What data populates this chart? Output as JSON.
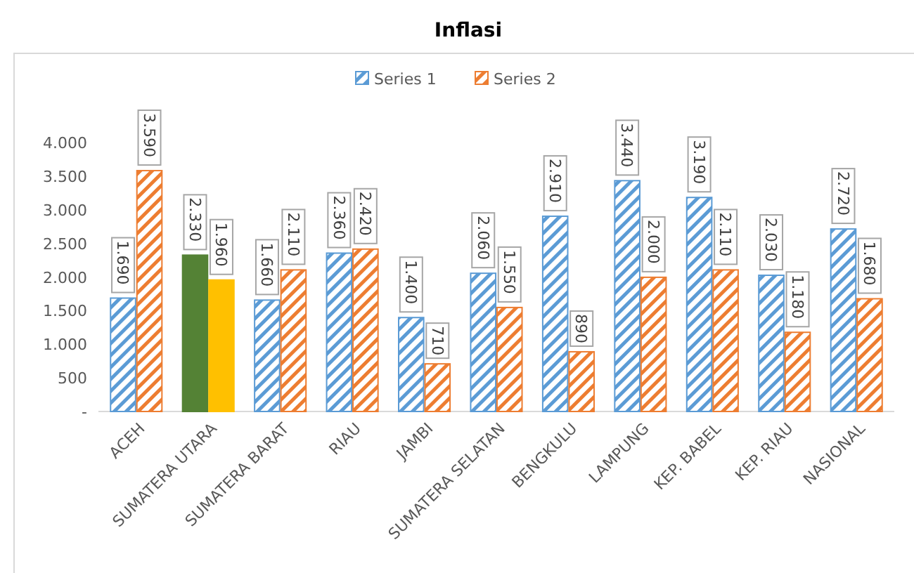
{
  "chart_data": {
    "type": "bar",
    "title": "Inflasi",
    "categories": [
      "ACEH",
      "SUMATERA UTARA",
      "SUMATERA BARAT",
      "RIAU",
      "JAMBI",
      "SUMATERA SELATAN",
      "BENGKULU",
      "LAMPUNG",
      "KEP. BABEL",
      "KEP. RIAU",
      "NASIONAL"
    ],
    "series": [
      {
        "name": "Series 1",
        "color": "#5b9bd5",
        "colors": [
          "#5b9bd5",
          "#548235",
          "#5b9bd5",
          "#5b9bd5",
          "#5b9bd5",
          "#5b9bd5",
          "#5b9bd5",
          "#5b9bd5",
          "#5b9bd5",
          "#5b9bd5",
          "#5b9bd5"
        ],
        "values": [
          1690,
          2330,
          1660,
          2360,
          1400,
          2060,
          2910,
          3440,
          3190,
          2030,
          2720
        ],
        "value_labels": [
          "1.690",
          "2.330",
          "1.660",
          "2.360",
          "1.400",
          "2.060",
          "2.910",
          "3.440",
          "3.190",
          "2.030",
          "2.720"
        ]
      },
      {
        "name": "Series 2",
        "color": "#ed7d31",
        "colors": [
          "#ed7d31",
          "#ffc000",
          "#ed7d31",
          "#ed7d31",
          "#ed7d31",
          "#ed7d31",
          "#ed7d31",
          "#ed7d31",
          "#ed7d31",
          "#ed7d31",
          "#ed7d31"
        ],
        "values": [
          3590,
          1960,
          2110,
          2420,
          710,
          1550,
          890,
          2000,
          2110,
          1180,
          1680
        ],
        "value_labels": [
          "3.590",
          "1.960",
          "2.110",
          "2.420",
          "710",
          "1.550",
          "890",
          "2.000",
          "2.110",
          "1.180",
          "1.680"
        ]
      }
    ],
    "ylim": [
      0,
      4500
    ],
    "yticks": [
      {
        "value": 0,
        "label": "-"
      },
      {
        "value": 500,
        "label": "500"
      },
      {
        "value": 1000,
        "label": "1.000"
      },
      {
        "value": 1500,
        "label": "1.500"
      },
      {
        "value": 2000,
        "label": "2.000"
      },
      {
        "value": 2500,
        "label": "2.500"
      },
      {
        "value": 3000,
        "label": "3.000"
      },
      {
        "value": 3500,
        "label": "3.500"
      },
      {
        "value": 4000,
        "label": "4.000"
      }
    ],
    "legend": "top",
    "grid": false
  }
}
